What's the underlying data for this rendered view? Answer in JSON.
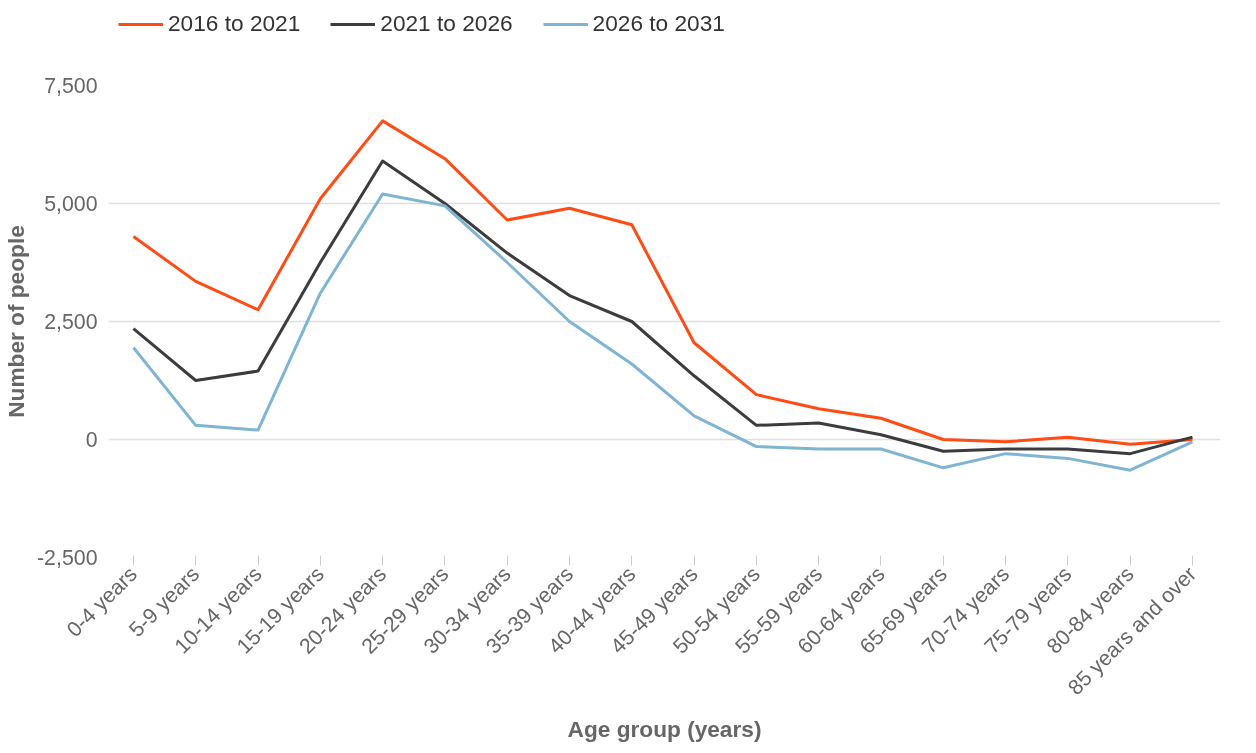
{
  "chart_data": {
    "type": "line",
    "xlabel": "Age group (years)",
    "ylabel": "Number of people",
    "categories": [
      "0-4 years",
      "5-9 years",
      "10-14 years",
      "15-19 years",
      "20-24 years",
      "25-29 years",
      "30-34 years",
      "35-39 years",
      "40-44 years",
      "45-49 years",
      "50-54 years",
      "55-59 years",
      "60-64 years",
      "65-69 years",
      "70-74 years",
      "75-79 years",
      "80-84 years",
      "85 years and over"
    ],
    "series": [
      {
        "name": "2016 to 2021",
        "color": "#ff4b14",
        "values": [
          4300,
          3350,
          2750,
          5100,
          6750,
          5950,
          4650,
          4900,
          4550,
          2050,
          950,
          650,
          450,
          0,
          -50,
          50,
          -100,
          0
        ]
      },
      {
        "name": "2021 to 2026",
        "color": "#3c3c3c",
        "values": [
          2350,
          1250,
          1450,
          3750,
          5900,
          5000,
          3950,
          3050,
          2500,
          1350,
          300,
          350,
          100,
          -250,
          -200,
          -200,
          -300,
          50
        ]
      },
      {
        "name": "2026 to 2031",
        "color": "#7fb4d2",
        "values": [
          1950,
          300,
          200,
          3100,
          5200,
          4950,
          3750,
          2500,
          1600,
          500,
          -150,
          -200,
          -200,
          -600,
          -300,
          -400,
          -650,
          -50
        ]
      }
    ],
    "ylim": [
      -2500,
      7500
    ],
    "yticks": [
      {
        "value": -2500,
        "label": "-2,500"
      },
      0,
      {
        "value": 2500,
        "label": "2,500"
      },
      {
        "value": 5000,
        "label": "5,000"
      },
      {
        "value": 7500,
        "label": "7,500"
      }
    ],
    "grid": "y",
    "legend": "top left",
    "marker": "none",
    "line_style": "solid"
  }
}
